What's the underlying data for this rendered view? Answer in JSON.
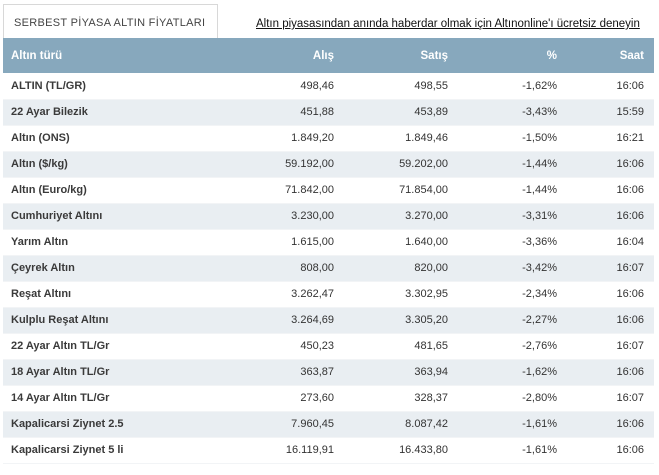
{
  "header": {
    "tab_title": "SERBEST PİYASA ALTIN FİYATLARI",
    "promo_text": "Altın piyasasından anında haberdar olmak için Altınonline'ı ücretsiz deneyin"
  },
  "table": {
    "columns": [
      "Altın türü",
      "Alış",
      "Satış",
      "%",
      "Saat"
    ],
    "rows": [
      {
        "name": "ALTIN (TL/GR)",
        "alis": "498,46",
        "satis": "498,55",
        "pct": "-1,62%",
        "saat": "16:06"
      },
      {
        "name": "22 Ayar Bilezik",
        "alis": "451,88",
        "satis": "453,89",
        "pct": "-3,43%",
        "saat": "15:59"
      },
      {
        "name": "Altın (ONS)",
        "alis": "1.849,20",
        "satis": "1.849,46",
        "pct": "-1,50%",
        "saat": "16:21"
      },
      {
        "name": "Altın ($/kg)",
        "alis": "59.192,00",
        "satis": "59.202,00",
        "pct": "-1,44%",
        "saat": "16:06"
      },
      {
        "name": "Altın (Euro/kg)",
        "alis": "71.842,00",
        "satis": "71.854,00",
        "pct": "-1,44%",
        "saat": "16:06"
      },
      {
        "name": "Cumhuriyet Altını",
        "alis": "3.230,00",
        "satis": "3.270,00",
        "pct": "-3,31%",
        "saat": "16:06"
      },
      {
        "name": "Yarım Altın",
        "alis": "1.615,00",
        "satis": "1.640,00",
        "pct": "-3,36%",
        "saat": "16:04"
      },
      {
        "name": "Çeyrek Altın",
        "alis": "808,00",
        "satis": "820,00",
        "pct": "-3,42%",
        "saat": "16:07"
      },
      {
        "name": "Reşat Altını",
        "alis": "3.262,47",
        "satis": "3.302,95",
        "pct": "-2,34%",
        "saat": "16:06"
      },
      {
        "name": "Kulplu Reşat Altını",
        "alis": "3.264,69",
        "satis": "3.305,20",
        "pct": "-2,27%",
        "saat": "16:06"
      },
      {
        "name": "22 Ayar Altın TL/Gr",
        "alis": "450,23",
        "satis": "481,65",
        "pct": "-2,76%",
        "saat": "16:07"
      },
      {
        "name": "18 Ayar Altın TL/Gr",
        "alis": "363,87",
        "satis": "363,94",
        "pct": "-1,62%",
        "saat": "16:06"
      },
      {
        "name": "14 Ayar Altın TL/Gr",
        "alis": "273,60",
        "satis": "328,37",
        "pct": "-2,80%",
        "saat": "16:07"
      },
      {
        "name": "Kapalicarsi Ziynet 2.5",
        "alis": "7.960,45",
        "satis": "8.087,42",
        "pct": "-1,61%",
        "saat": "16:06"
      },
      {
        "name": "Kapalicarsi Ziynet 5 li",
        "alis": "16.119,91",
        "satis": "16.433,80",
        "pct": "-1,61%",
        "saat": "16:06"
      }
    ]
  }
}
